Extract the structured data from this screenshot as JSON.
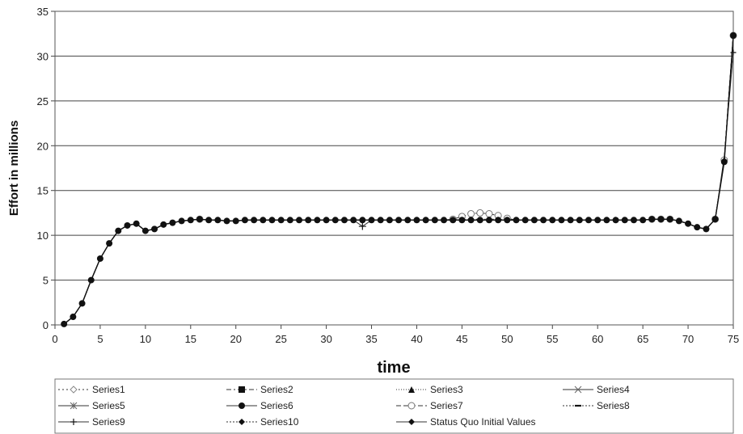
{
  "chart_data": {
    "type": "line",
    "xlabel": "time",
    "ylabel": "Effort in millions",
    "xlim": [
      0,
      75
    ],
    "ylim": [
      0,
      35
    ],
    "xticks": [
      0,
      5,
      10,
      15,
      20,
      25,
      30,
      35,
      40,
      45,
      50,
      55,
      60,
      65,
      70,
      75
    ],
    "yticks": [
      0,
      5,
      10,
      15,
      20,
      25,
      30,
      35
    ],
    "grid": "horizontal",
    "legend": "bottom",
    "x": [
      1,
      2,
      3,
      4,
      5,
      6,
      7,
      8,
      9,
      10,
      11,
      12,
      13,
      14,
      15,
      16,
      17,
      18,
      19,
      20,
      21,
      22,
      23,
      24,
      25,
      26,
      27,
      28,
      29,
      30,
      31,
      32,
      33,
      34,
      35,
      36,
      37,
      38,
      39,
      40,
      41,
      42,
      43,
      44,
      45,
      46,
      47,
      48,
      49,
      50,
      51,
      52,
      53,
      54,
      55,
      56,
      57,
      58,
      59,
      60,
      61,
      62,
      63,
      64,
      65,
      66,
      67,
      68,
      69,
      70,
      71,
      72,
      73,
      74,
      75
    ],
    "series": [
      {
        "name": "Series1",
        "marker": "diamond-open",
        "dash": "2,3",
        "values": [
          0.1,
          0.9,
          2.4,
          5.0,
          7.4,
          9.1,
          10.5,
          11.1,
          11.3,
          10.5,
          10.7,
          11.2,
          11.4,
          11.6,
          11.7,
          11.8,
          11.7,
          11.7,
          11.6,
          11.6,
          11.7,
          11.7,
          11.7,
          11.7,
          11.7,
          11.7,
          11.7,
          11.7,
          11.7,
          11.7,
          11.7,
          11.7,
          11.7,
          11.7,
          11.7,
          11.7,
          11.7,
          11.7,
          11.7,
          11.7,
          11.7,
          11.7,
          11.7,
          11.7,
          11.8,
          11.8,
          11.8,
          11.8,
          11.8,
          11.7,
          11.7,
          11.7,
          11.7,
          11.7,
          11.7,
          11.7,
          11.7,
          11.7,
          11.7,
          11.7,
          11.7,
          11.7,
          11.7,
          11.7,
          11.7,
          11.8,
          11.8,
          11.8,
          11.6,
          11.3,
          10.9,
          10.7,
          11.8,
          18.4,
          32.3
        ]
      },
      {
        "name": "Series2",
        "marker": "square",
        "dash": "6,3,2,3",
        "values": [
          0.1,
          0.9,
          2.4,
          5.0,
          7.4,
          9.1,
          10.5,
          11.1,
          11.3,
          10.5,
          10.7,
          11.2,
          11.4,
          11.6,
          11.7,
          11.8,
          11.7,
          11.7,
          11.6,
          11.6,
          11.7,
          11.7,
          11.7,
          11.7,
          11.7,
          11.7,
          11.7,
          11.7,
          11.7,
          11.7,
          11.7,
          11.7,
          11.7,
          11.7,
          11.7,
          11.7,
          11.7,
          11.7,
          11.7,
          11.7,
          11.7,
          11.7,
          11.7,
          11.7,
          11.7,
          11.7,
          11.7,
          11.7,
          11.7,
          11.7,
          11.7,
          11.7,
          11.7,
          11.7,
          11.7,
          11.7,
          11.7,
          11.7,
          11.7,
          11.7,
          11.7,
          11.7,
          11.7,
          11.7,
          11.7,
          11.8,
          11.8,
          11.8,
          11.6,
          11.3,
          10.9,
          10.7,
          11.8,
          18.4,
          32.3
        ]
      },
      {
        "name": "Series3",
        "marker": "triangle",
        "dash": "1,2",
        "values": [
          0.1,
          0.9,
          2.4,
          5.0,
          7.4,
          9.1,
          10.5,
          11.1,
          11.3,
          10.5,
          10.7,
          11.2,
          11.4,
          11.6,
          11.7,
          11.8,
          11.7,
          11.7,
          11.6,
          11.6,
          11.7,
          11.7,
          11.7,
          11.7,
          11.7,
          11.7,
          11.7,
          11.7,
          11.7,
          11.7,
          11.7,
          11.7,
          11.7,
          11.7,
          11.7,
          11.7,
          11.7,
          11.7,
          11.7,
          11.7,
          11.7,
          11.7,
          11.7,
          11.7,
          11.7,
          11.7,
          11.7,
          11.7,
          11.7,
          11.7,
          11.7,
          11.7,
          11.7,
          11.7,
          11.7,
          11.7,
          11.7,
          11.7,
          11.7,
          11.7,
          11.7,
          11.7,
          11.7,
          11.7,
          11.7,
          11.8,
          11.8,
          11.8,
          11.6,
          11.3,
          10.9,
          10.7,
          11.8,
          18.4,
          32.3
        ]
      },
      {
        "name": "Series4",
        "marker": "x",
        "dash": "",
        "values": [
          0.1,
          0.9,
          2.4,
          5.0,
          7.4,
          9.1,
          10.5,
          11.1,
          11.3,
          10.5,
          10.7,
          11.2,
          11.4,
          11.6,
          11.7,
          11.8,
          11.7,
          11.7,
          11.6,
          11.6,
          11.7,
          11.7,
          11.7,
          11.7,
          11.7,
          11.7,
          11.7,
          11.7,
          11.7,
          11.7,
          11.7,
          11.7,
          11.7,
          11.7,
          11.7,
          11.7,
          11.7,
          11.7,
          11.7,
          11.7,
          11.7,
          11.7,
          11.7,
          11.7,
          11.7,
          11.7,
          11.7,
          11.7,
          11.7,
          11.7,
          11.7,
          11.7,
          11.7,
          11.7,
          11.7,
          11.7,
          11.7,
          11.7,
          11.7,
          11.7,
          11.7,
          11.7,
          11.7,
          11.7,
          11.7,
          11.8,
          11.8,
          11.8,
          11.6,
          11.3,
          10.9,
          10.7,
          11.8,
          18.4,
          32.3
        ]
      },
      {
        "name": "Series5",
        "marker": "star",
        "dash": "",
        "values": [
          0.1,
          0.9,
          2.4,
          5.0,
          7.4,
          9.1,
          10.5,
          11.1,
          11.3,
          10.5,
          10.7,
          11.2,
          11.4,
          11.6,
          11.7,
          11.8,
          11.7,
          11.7,
          11.6,
          11.6,
          11.7,
          11.7,
          11.7,
          11.7,
          11.7,
          11.7,
          11.7,
          11.7,
          11.7,
          11.7,
          11.7,
          11.7,
          11.7,
          11.7,
          11.7,
          11.7,
          11.7,
          11.7,
          11.7,
          11.7,
          11.7,
          11.7,
          11.7,
          11.7,
          11.7,
          11.7,
          11.7,
          11.7,
          11.7,
          11.7,
          11.7,
          11.7,
          11.7,
          11.7,
          11.7,
          11.7,
          11.7,
          11.7,
          11.7,
          11.7,
          11.7,
          11.7,
          11.7,
          11.7,
          11.7,
          11.8,
          11.8,
          11.8,
          11.6,
          11.3,
          10.9,
          10.7,
          11.8,
          18.4,
          32.3
        ]
      },
      {
        "name": "Series6",
        "marker": "circle",
        "dash": "",
        "values": [
          0.1,
          0.9,
          2.4,
          5.0,
          7.4,
          9.1,
          10.5,
          11.1,
          11.3,
          10.5,
          10.7,
          11.2,
          11.4,
          11.6,
          11.7,
          11.8,
          11.7,
          11.7,
          11.6,
          11.6,
          11.7,
          11.7,
          11.7,
          11.7,
          11.7,
          11.7,
          11.7,
          11.7,
          11.7,
          11.7,
          11.7,
          11.7,
          11.7,
          11.7,
          11.7,
          11.7,
          11.7,
          11.7,
          11.7,
          11.7,
          11.7,
          11.7,
          11.7,
          11.7,
          11.7,
          11.7,
          11.7,
          11.7,
          11.7,
          11.7,
          11.7,
          11.7,
          11.7,
          11.7,
          11.7,
          11.7,
          11.7,
          11.7,
          11.7,
          11.7,
          11.7,
          11.7,
          11.7,
          11.7,
          11.7,
          11.8,
          11.8,
          11.8,
          11.6,
          11.3,
          10.9,
          10.7,
          11.8,
          18.2,
          32.3
        ]
      },
      {
        "name": "Series7",
        "marker": "circle-open",
        "dash": "6,3",
        "values": [
          0.1,
          0.9,
          2.4,
          5.0,
          7.4,
          9.1,
          10.5,
          11.1,
          11.3,
          10.5,
          10.7,
          11.2,
          11.4,
          11.6,
          11.7,
          11.8,
          11.7,
          11.7,
          11.6,
          11.6,
          11.7,
          11.7,
          11.7,
          11.7,
          11.7,
          11.7,
          11.7,
          11.7,
          11.7,
          11.7,
          11.7,
          11.7,
          11.7,
          11.7,
          11.7,
          11.7,
          11.7,
          11.7,
          11.7,
          11.7,
          11.7,
          11.7,
          11.7,
          11.8,
          12.1,
          12.4,
          12.5,
          12.4,
          12.2,
          11.9,
          11.7,
          11.7,
          11.7,
          11.7,
          11.7,
          11.7,
          11.7,
          11.7,
          11.7,
          11.7,
          11.7,
          11.7,
          11.7,
          11.7,
          11.7,
          11.8,
          11.8,
          11.8,
          11.6,
          11.3,
          10.9,
          10.7,
          11.8,
          18.4,
          32.3
        ]
      },
      {
        "name": "Series8",
        "marker": "dash",
        "dash": "2,2",
        "values": [
          0.1,
          0.9,
          2.4,
          5.0,
          7.4,
          9.1,
          10.5,
          11.1,
          11.3,
          10.5,
          10.7,
          11.2,
          11.4,
          11.6,
          11.7,
          11.8,
          11.7,
          11.7,
          11.6,
          11.6,
          11.7,
          11.7,
          11.7,
          11.7,
          11.7,
          11.7,
          11.7,
          11.7,
          11.7,
          11.7,
          11.7,
          11.7,
          11.7,
          11.7,
          11.7,
          11.7,
          11.7,
          11.7,
          11.7,
          11.7,
          11.7,
          11.7,
          11.7,
          11.7,
          11.7,
          11.7,
          11.7,
          11.7,
          11.7,
          11.7,
          11.7,
          11.7,
          11.7,
          11.7,
          11.7,
          11.7,
          11.7,
          11.7,
          11.7,
          11.7,
          11.7,
          11.7,
          11.7,
          11.7,
          11.7,
          11.8,
          11.8,
          11.8,
          11.6,
          11.3,
          10.9,
          10.7,
          11.8,
          18.4,
          32.3
        ]
      },
      {
        "name": "Series9",
        "marker": "plus",
        "dash": "",
        "values": [
          0.1,
          0.9,
          2.4,
          5.0,
          7.4,
          9.1,
          10.5,
          11.1,
          11.3,
          10.5,
          10.7,
          11.2,
          11.4,
          11.6,
          11.7,
          11.8,
          11.7,
          11.7,
          11.6,
          11.6,
          11.7,
          11.7,
          11.7,
          11.7,
          11.7,
          11.7,
          11.7,
          11.7,
          11.7,
          11.7,
          11.7,
          11.7,
          11.7,
          11.0,
          11.7,
          11.7,
          11.7,
          11.7,
          11.7,
          11.7,
          11.7,
          11.7,
          11.7,
          11.7,
          11.7,
          11.7,
          11.7,
          11.7,
          11.7,
          11.7,
          11.7,
          11.7,
          11.7,
          11.7,
          11.7,
          11.7,
          11.7,
          11.7,
          11.7,
          11.7,
          11.7,
          11.7,
          11.7,
          11.7,
          11.7,
          11.8,
          11.8,
          11.8,
          11.6,
          11.3,
          10.9,
          10.7,
          11.8,
          18.8,
          30.4
        ]
      },
      {
        "name": "Series10",
        "marker": "diamond",
        "dash": "2,2",
        "values": [
          0.1,
          0.9,
          2.4,
          5.0,
          7.4,
          9.1,
          10.5,
          11.1,
          11.3,
          10.5,
          10.7,
          11.2,
          11.4,
          11.6,
          11.7,
          11.8,
          11.7,
          11.7,
          11.6,
          11.6,
          11.7,
          11.7,
          11.7,
          11.7,
          11.7,
          11.7,
          11.7,
          11.7,
          11.7,
          11.7,
          11.7,
          11.7,
          11.7,
          11.7,
          11.7,
          11.7,
          11.7,
          11.7,
          11.7,
          11.7,
          11.7,
          11.7,
          11.7,
          11.7,
          11.7,
          11.7,
          11.7,
          11.7,
          11.7,
          11.7,
          11.7,
          11.7,
          11.7,
          11.7,
          11.7,
          11.7,
          11.7,
          11.7,
          11.7,
          11.7,
          11.7,
          11.7,
          11.7,
          11.7,
          11.7,
          11.8,
          11.8,
          11.8,
          11.6,
          11.3,
          10.9,
          10.7,
          11.8,
          18.4,
          32.3
        ]
      },
      {
        "name": "Status Quo Initial Values",
        "marker": "diamond",
        "dash": "",
        "values": [
          0.1,
          0.9,
          2.4,
          5.0,
          7.4,
          9.1,
          10.5,
          11.1,
          11.3,
          10.5,
          10.7,
          11.2,
          11.4,
          11.6,
          11.7,
          11.8,
          11.7,
          11.7,
          11.6,
          11.6,
          11.7,
          11.7,
          11.7,
          11.7,
          11.7,
          11.7,
          11.7,
          11.7,
          11.7,
          11.7,
          11.7,
          11.7,
          11.7,
          11.7,
          11.7,
          11.7,
          11.7,
          11.7,
          11.7,
          11.7,
          11.7,
          11.7,
          11.7,
          11.7,
          11.7,
          11.7,
          11.7,
          11.7,
          11.7,
          11.7,
          11.7,
          11.7,
          11.7,
          11.7,
          11.7,
          11.7,
          11.7,
          11.7,
          11.7,
          11.7,
          11.7,
          11.7,
          11.7,
          11.7,
          11.7,
          11.8,
          11.8,
          11.8,
          11.6,
          11.3,
          10.9,
          10.7,
          11.8,
          18.4,
          32.3
        ]
      }
    ]
  }
}
